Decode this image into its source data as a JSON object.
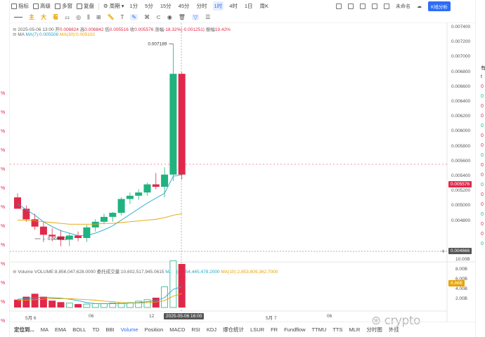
{
  "toolbar": {
    "items": [
      {
        "label": "指标",
        "icon": "indicator-icon"
      },
      {
        "label": "高级",
        "icon": "grid-icon"
      },
      {
        "label": "多窗",
        "icon": "window-icon"
      },
      {
        "label": "复盘",
        "icon": "replay-icon"
      },
      {
        "label": "周期",
        "icon": "clock-icon"
      }
    ],
    "timeframes": [
      "1分",
      "5分",
      "15分",
      "45分",
      "分时",
      "1时",
      "4时",
      "1日",
      "周K"
    ],
    "active_timeframe": "1时",
    "right_label": "未命名",
    "k_signal_label": "K线分析"
  },
  "drawing_toolbar": {
    "items": [
      "主",
      "大",
      "看"
    ]
  },
  "info_row": {
    "datetime": "2025-05-06 13:00",
    "open_label": "开",
    "open": "0.006824",
    "high_label": "高",
    "high": "0.006842",
    "low_label": "低",
    "low": "0.005516",
    "close_label": "收",
    "close": "0.005576",
    "change_label": "涨幅",
    "change": "-18.32%(-0.001251)",
    "amplitude_label": "振幅",
    "amplitude": "19.42%"
  },
  "ma_row": {
    "label": "MA",
    "ma7": "MA(7):0.005508",
    "ma30": "MA(30):0.005102"
  },
  "volume_row": {
    "label": "Volume",
    "volume": "VOLUME:8,856,047,628.0000",
    "turnover": "委托成交量:10,602,517,945.0615",
    "ma5": "MA(5):4,254,445,478.2000",
    "ma10": "MA(10):2,853,809,362.7000"
  },
  "price_axis": [
    "0.007400",
    "0.007200",
    "0.007000",
    "0.006800",
    "0.006600",
    "0.006400",
    "0.006200",
    "0.006000",
    "0.005800",
    "0.005600",
    "0.005400",
    "0.005200",
    "0.005000",
    "0.004800"
  ],
  "current_price": "0.005576",
  "crosshair_price": "0.004666",
  "high_marker": "0.007189",
  "low_marker": "0.004633",
  "volume_axis": [
    "10.00B",
    "8.00B",
    "6.00B",
    "4.00B",
    "2.00B"
  ],
  "volume_badge": "8.86B",
  "x_axis": [
    "5月 6",
    "06",
    "12",
    "5月 7",
    "06"
  ],
  "crosshair_time": "2025-05-06 16:00",
  "bottom_bar": {
    "items": [
      "定位到...",
      "MA",
      "EMA",
      "BOLL",
      "TD",
      "BBI",
      "Volume",
      "Position",
      "MACD",
      "RSI",
      "KDJ",
      "爆仓统计",
      "LSUR",
      "FR",
      "Fundflow",
      "TTMU",
      "TTS",
      "MLR",
      "分时图",
      "外挂"
    ],
    "active": "Volume"
  },
  "left_strip": [
    "%",
    "%",
    "%",
    "%",
    "%",
    "%",
    "%",
    "%",
    "%",
    "%",
    "%",
    "%",
    "%",
    "%"
  ],
  "right_strip": [
    "有",
    "t",
    "0",
    "0",
    "0",
    "0",
    "0",
    "0",
    "0",
    "0",
    "0",
    "0",
    "0",
    "0",
    "0",
    "0",
    "0",
    "0",
    "0"
  ],
  "watermark": "crypto",
  "colors": {
    "up": "#20b27f",
    "down": "#e0294a",
    "ma7": "#22a8c8",
    "ma30": "#e8a200",
    "accent": "#2d6df6"
  }
}
